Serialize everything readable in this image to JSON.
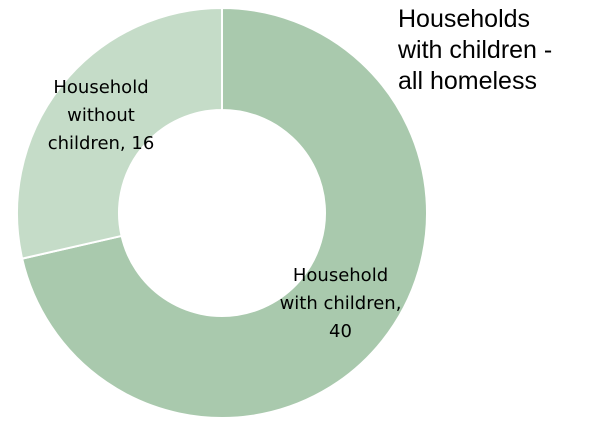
{
  "chart_data": {
    "type": "pie",
    "variant": "donut",
    "title": "Households\nwith children -\nall homeless",
    "categories": [
      "Household with children",
      "Household without children"
    ],
    "values": [
      40,
      16
    ],
    "data_labels": [
      "Household\nwith children,\n40",
      "Household\nwithout\nchildren, 16"
    ],
    "colors": [
      "#a9c9ad",
      "#c5dcc8"
    ],
    "legend": "none"
  }
}
